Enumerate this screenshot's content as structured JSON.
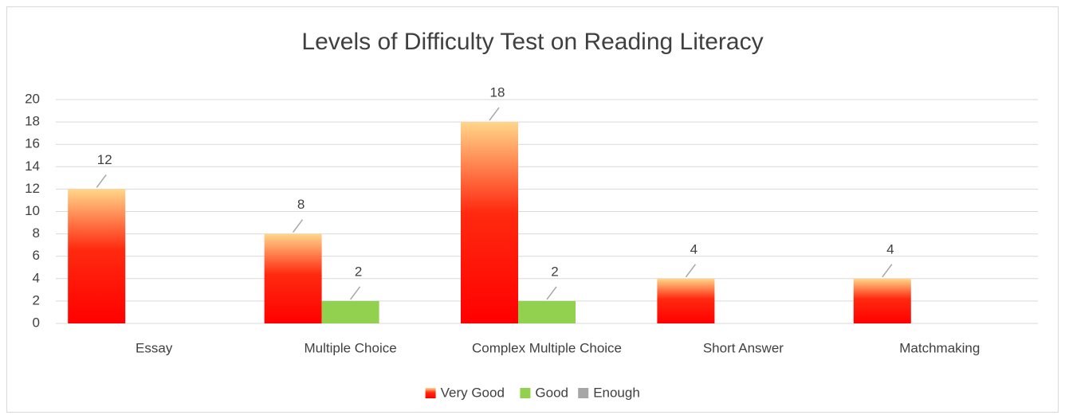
{
  "chart_data": {
    "type": "bar",
    "title": "Levels of Difficulty Test on Reading Literacy",
    "categories": [
      "Essay",
      "Multiple Choice",
      "Complex Multiple Choice",
      "Short Answer",
      "Matchmaking"
    ],
    "series": [
      {
        "name": "Very Good",
        "color": "#ff0000",
        "values": [
          12,
          8,
          18,
          4,
          4
        ]
      },
      {
        "name": "Good",
        "color": "#92d050",
        "values": [
          null,
          2,
          2,
          null,
          null
        ]
      },
      {
        "name": "Enough",
        "color": "#a6a6a6",
        "values": [
          null,
          null,
          null,
          null,
          null
        ]
      }
    ],
    "ylim": [
      0,
      20
    ],
    "yticks": [
      0,
      2,
      4,
      6,
      8,
      10,
      12,
      14,
      16,
      18,
      20
    ],
    "grid": true,
    "legend": "bottom"
  }
}
